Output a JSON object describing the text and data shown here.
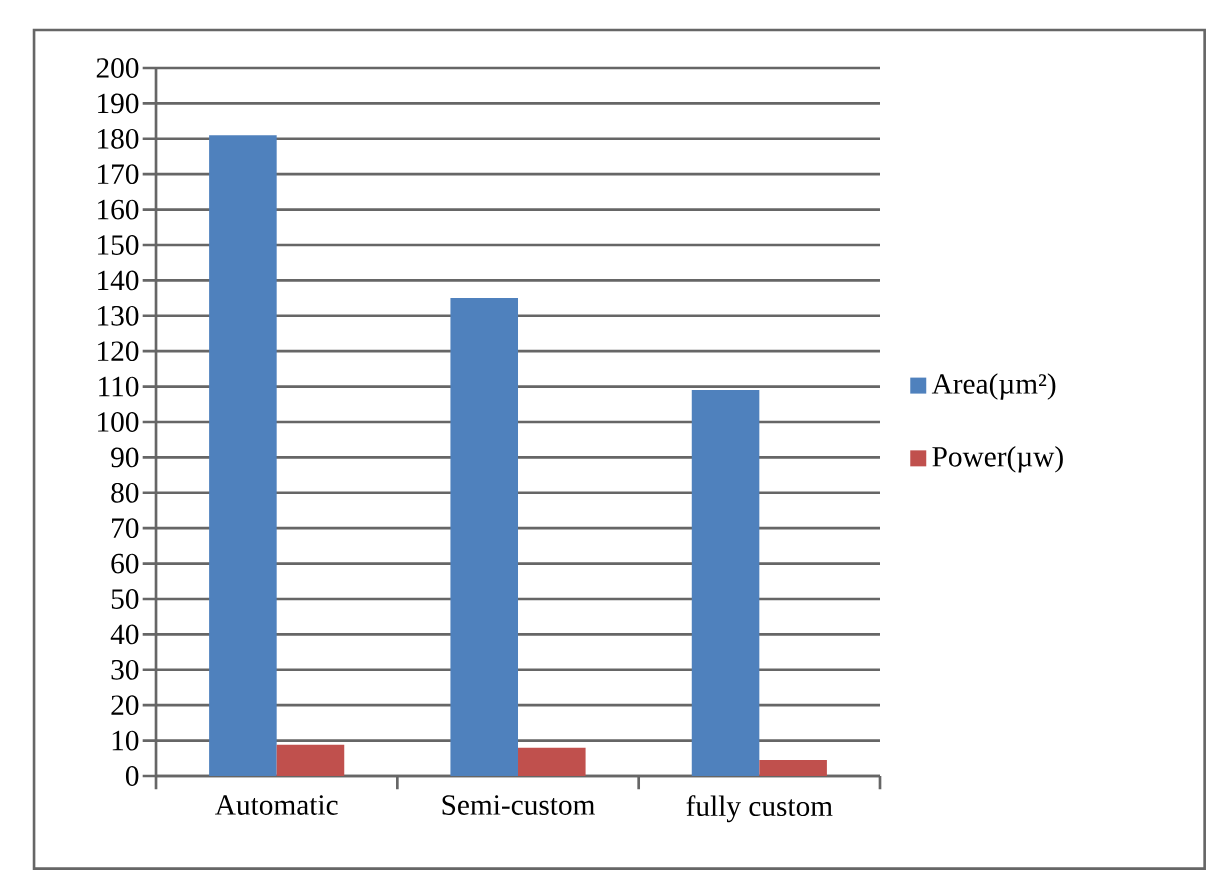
{
  "chart_data": {
    "type": "bar",
    "categories": [
      "Automatic",
      "Semi-custom",
      "fully custom"
    ],
    "series": [
      {
        "name": "Area(µm²)",
        "color": "#4f81bd",
        "values": [
          181,
          135,
          109
        ]
      },
      {
        "name": "Power(µw)",
        "color": "#c0504d",
        "values": [
          8.8,
          8,
          4.5
        ]
      }
    ],
    "ylim": [
      0,
      200
    ],
    "yticks": [
      0,
      10,
      20,
      30,
      40,
      50,
      60,
      70,
      80,
      90,
      100,
      110,
      120,
      130,
      140,
      150,
      160,
      170,
      180,
      190,
      200
    ],
    "grid": "y",
    "legend": "right"
  }
}
